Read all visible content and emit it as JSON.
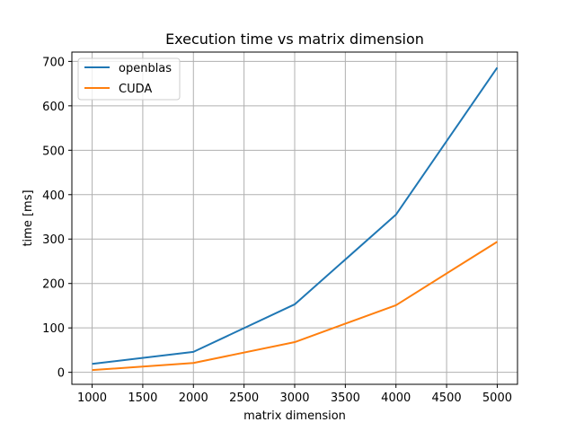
{
  "chart_data": {
    "type": "line",
    "title": "Execution time vs matrix dimension",
    "xlabel": "matrix dimension",
    "ylabel": "time [ms]",
    "x": [
      1000,
      2000,
      3000,
      4000,
      5000
    ],
    "series": [
      {
        "name": "openblas",
        "color": "#1f77b4",
        "values": [
          19,
          46,
          153,
          355,
          686
        ]
      },
      {
        "name": "CUDA",
        "color": "#ff7f0e",
        "values": [
          5,
          21,
          68,
          151,
          294
        ]
      }
    ],
    "xlim": [
      800,
      5200
    ],
    "ylim": [
      -27,
      721
    ],
    "xticks": [
      1000,
      1500,
      2000,
      2500,
      3000,
      3500,
      4000,
      4500,
      5000
    ],
    "yticks": [
      0,
      100,
      200,
      300,
      400,
      500,
      600,
      700
    ],
    "grid": true,
    "legend_position": "top-left"
  }
}
